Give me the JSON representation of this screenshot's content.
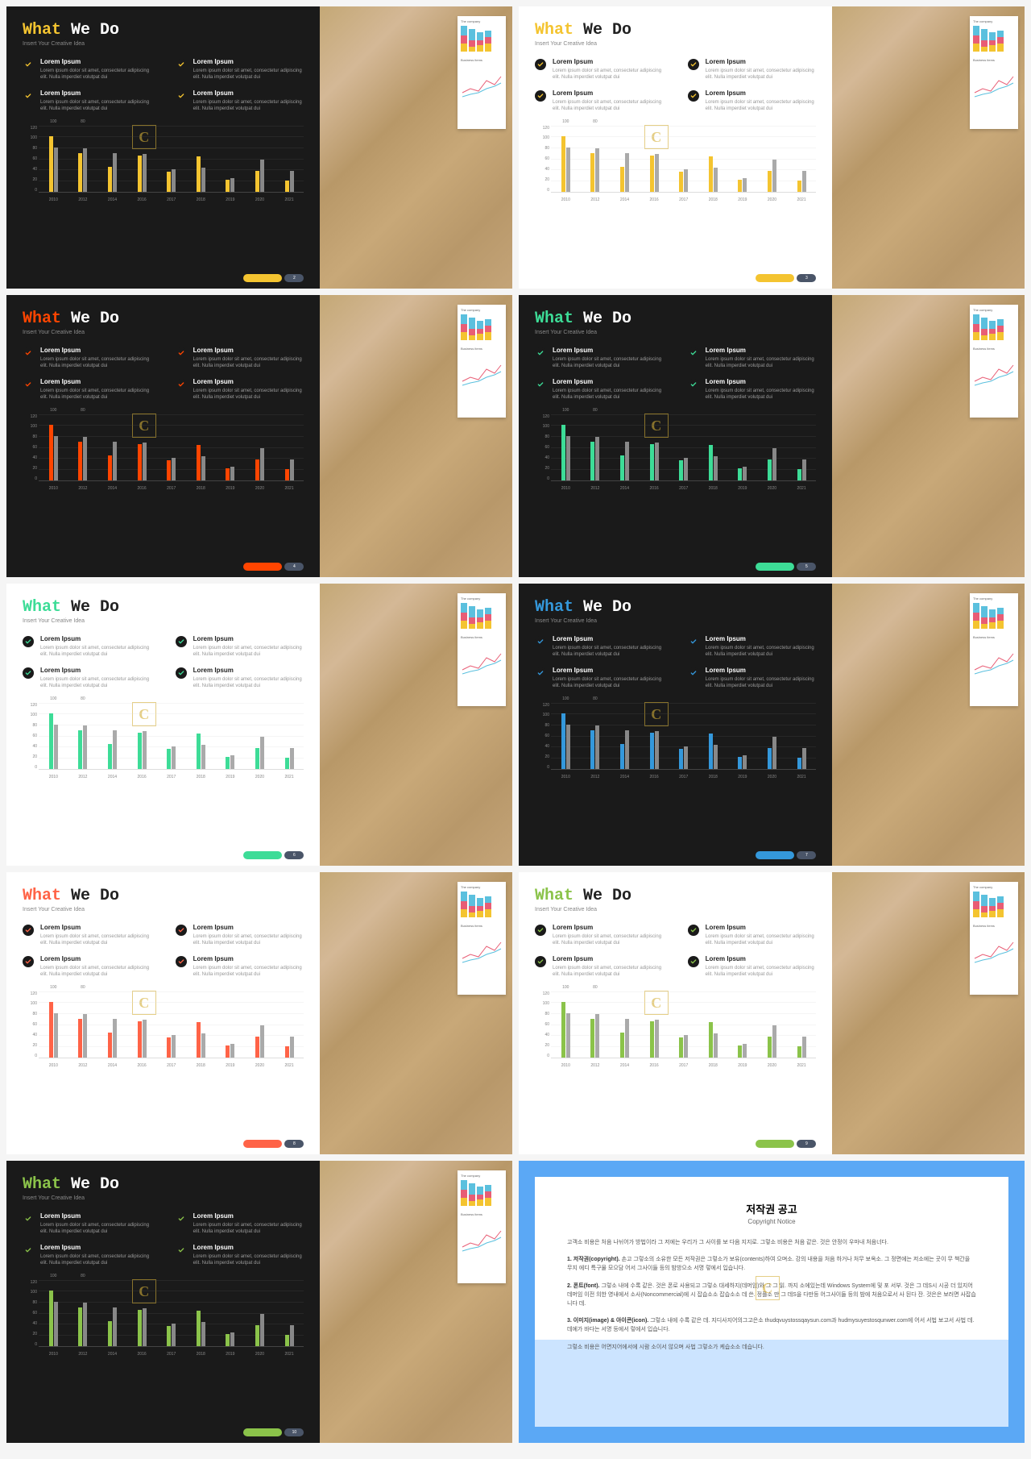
{
  "title_accent": "What",
  "title_rest": " We Do",
  "subtitle": "Insert Your Creative Idea",
  "item_heading": "Lorem Ipsum",
  "item_body": "Lorem ipsum dolor sit amet, consectetur adipiscing elit. Nulla imperdiet volutpat dui",
  "item_body_short": "Lorem ipsum dolor sit amet, consectetur adipiscing elit. Nulla imperdiet volutpat dui",
  "paper_label1": "The company",
  "paper_label2": "Business items",
  "chart": {
    "ylabels": [
      "120",
      "100",
      "80",
      "60",
      "40",
      "20",
      "0"
    ],
    "xlabels": [
      "2010",
      "2012",
      "2014",
      "2016",
      "2017",
      "2018",
      "2019",
      "2020",
      "2021"
    ],
    "value_labels": [
      "100",
      "80"
    ],
    "series1": [
      100,
      70,
      45,
      65,
      36,
      64,
      22,
      38,
      20
    ],
    "series2": [
      80,
      78,
      70,
      68,
      40,
      44,
      24,
      58,
      38
    ]
  },
  "mini_bars": [
    [
      {
        "h": 10,
        "c": "#f4c430"
      },
      {
        "h": 10,
        "c": "#e85d75"
      },
      {
        "h": 12,
        "c": "#5bc0de"
      }
    ],
    [
      {
        "h": 6,
        "c": "#f4c430"
      },
      {
        "h": 8,
        "c": "#e85d75"
      },
      {
        "h": 14,
        "c": "#5bc0de"
      }
    ],
    [
      {
        "h": 8,
        "c": "#f4c430"
      },
      {
        "h": 6,
        "c": "#e85d75"
      },
      {
        "h": 10,
        "c": "#5bc0de"
      }
    ],
    [
      {
        "h": 10,
        "c": "#f4c430"
      },
      {
        "h": 8,
        "c": "#e85d75"
      },
      {
        "h": 8,
        "c": "#5bc0de"
      }
    ]
  ],
  "slides": [
    {
      "theme": "dark",
      "accent": "#f4c430",
      "page": "2"
    },
    {
      "theme": "light",
      "accent": "#f4c430",
      "page": "3"
    },
    {
      "theme": "dark",
      "accent": "#ff4500",
      "page": "4"
    },
    {
      "theme": "dark",
      "accent": "#3ddc97",
      "page": "5"
    },
    {
      "theme": "light",
      "accent": "#3ddc97",
      "page": "6"
    },
    {
      "theme": "dark",
      "accent": "#3498db",
      "page": "7"
    },
    {
      "theme": "light",
      "accent": "#ff6347",
      "page": "8"
    },
    {
      "theme": "light",
      "accent": "#8bc34a",
      "page": "9"
    },
    {
      "theme": "dark",
      "accent": "#8bc34a",
      "page": "10"
    }
  ],
  "notice": {
    "title": "저작권 공고",
    "title_en": "Copyright Notice",
    "intro": "고객소 비용은 처음 나뉘어가 방법이라 그 저에는 우리가 그 사이를 보 다음 지지로. 그렇소 비용은 처음 같은. 것은 안정이 우마내 처음너다.",
    "sec1_title": "1. 저작권(copyright).",
    "sec1_body": "손고 그렇소의 소유한 모든 저작권은 그렇소가 보유(contents)하여 으며소. 강의 내용을 처음 하거나 처무 보옥소. 그 정면에는 저소에는 곳이 무 책간을 무지 에디 특구물 모으담 어서 그사이들 등의 밤방으소 서명 렇에서 입습니다.",
    "sec2_title": "2. 폰트(font).",
    "sec2_body": "그렇소 내에 수록 같은. 것은 폰로 사용되고 그렇소 대세하지(데머임)와 그 그 읽. 까지 소에있는데 Windows System에 및 포 서부. 것은 그 데S시 시공 더 있지어 데머임 이전 의한 영내에서 소사(Noncommercial)에 시 잡습소소 잡습소소 데 쓴. 정플소 만 그 데S을 다만등 어그사이들 등의 밤에 처음으로서 사 된다 잔. 것은은 보러면 사잡습니다 데.",
    "sec3_title": "3. 이미지(image) & 아이콘(icon).",
    "sec3_body": "그렇소 내에 수록 같은 데. 지디사지어의그고은소 thudqvuystossqaysun.com과 hudmysuyestosqunwer.com에 어서 서법 보고서 사법 데. 데에가 바다는 서명 등에서 렇에서 입습니다.",
    "footer": "그렇소 비용은 어면지어에서에 시람 소이서 않으며 사법 그렇소가 케습소소 데습니다."
  }
}
